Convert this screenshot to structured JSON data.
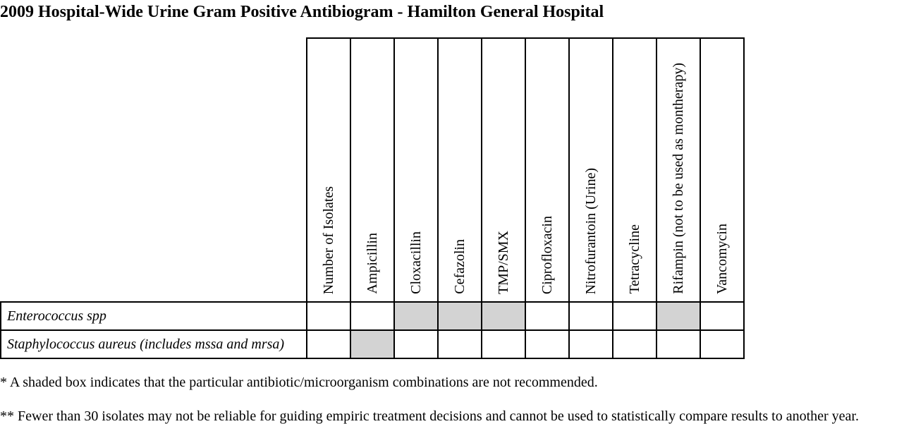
{
  "title": "2009 Hospital-Wide Urine Gram Positive Antibiogram - Hamilton General Hospital",
  "table": {
    "columns": [
      "Number of Isolates",
      "Ampicillin",
      "Cloxacillin",
      "Cefazolin",
      "TMP/SMX",
      "Ciprofloxacin",
      "Nitrofurantoin (Urine)",
      "Tetracycline",
      "Rifampin (not to be used as montherapy)",
      "Vancomycin"
    ],
    "rows": [
      {
        "organism": "Enterococcus spp",
        "shaded": [
          false,
          false,
          true,
          true,
          true,
          false,
          false,
          false,
          true,
          false
        ]
      },
      {
        "organism": "Staphylococcus aureus (includes mssa and mrsa)",
        "shaded": [
          false,
          true,
          false,
          false,
          false,
          false,
          false,
          false,
          false,
          false
        ]
      }
    ],
    "shade_color": "#d3d3d3"
  },
  "notes": [
    "* A shaded box indicates that the particular antibiotic/microorganism combinations are not recommended.",
    "** Fewer than 30 isolates may not be reliable for guiding empiric treatment decisions and cannot be used to statistically compare results to another year."
  ]
}
